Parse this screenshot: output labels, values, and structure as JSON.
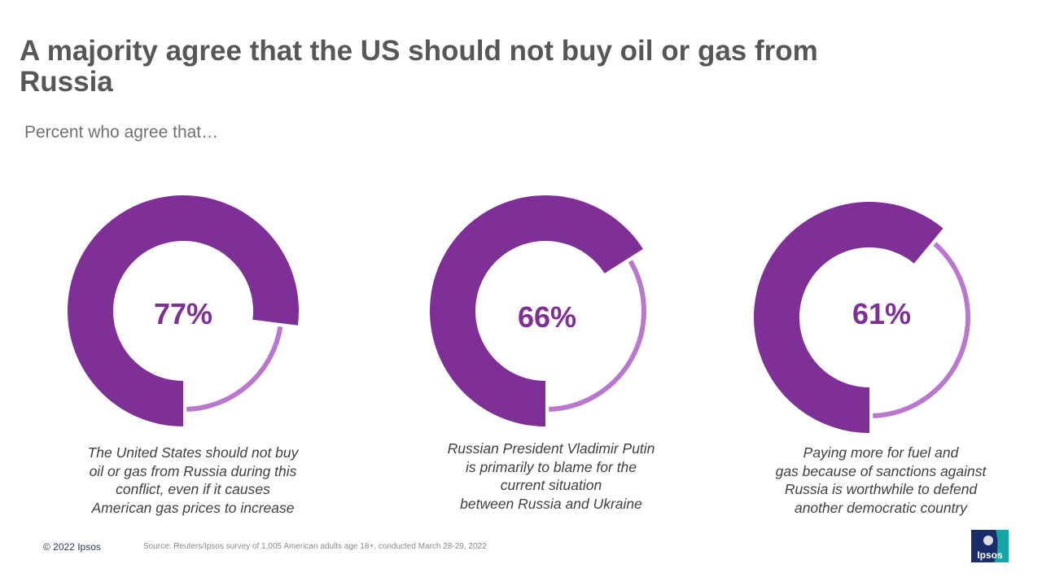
{
  "title": "A majority agree that the US should not buy oil or gas from Russia",
  "subtitle": "Percent who agree that…",
  "colors": {
    "primary": "#7F3096",
    "secondary": "#B978CE",
    "title": "#575757",
    "caption": "#404040",
    "logo_bg": "#1A2D6A",
    "logo_accent": "#13A6A4"
  },
  "chart_data": {
    "type": "pie",
    "subtype": "donut",
    "title": "Percent who agree that…",
    "charts": [
      {
        "label": "77%",
        "value": 77,
        "remainder": 23,
        "caption_lines": [
          "The United States should not buy",
          "oil or gas from Russia during this",
          "conflict, even if it causes",
          "American gas prices to increase"
        ]
      },
      {
        "label": "66%",
        "value": 66,
        "remainder": 34,
        "caption_lines": [
          "Russian President Vladimir Putin",
          "is primarily to blame for the",
          "current situation",
          "between Russia and Ukraine"
        ]
      },
      {
        "label": "61%",
        "value": 61,
        "remainder": 39,
        "caption_lines": [
          "Paying more for fuel and",
          "gas because of sanctions against",
          "Russia is worthwhile to defend",
          "another democratic country"
        ]
      }
    ]
  },
  "footer": {
    "copyright": "© 2022 Ipsos",
    "source": "Source: Reuters/Ipsos survey of 1,005 American adults age 18+,  conducted March 28-29, 2022"
  },
  "logo": {
    "text": "Ipsos",
    "icon": "ipsos-logo-icon"
  }
}
